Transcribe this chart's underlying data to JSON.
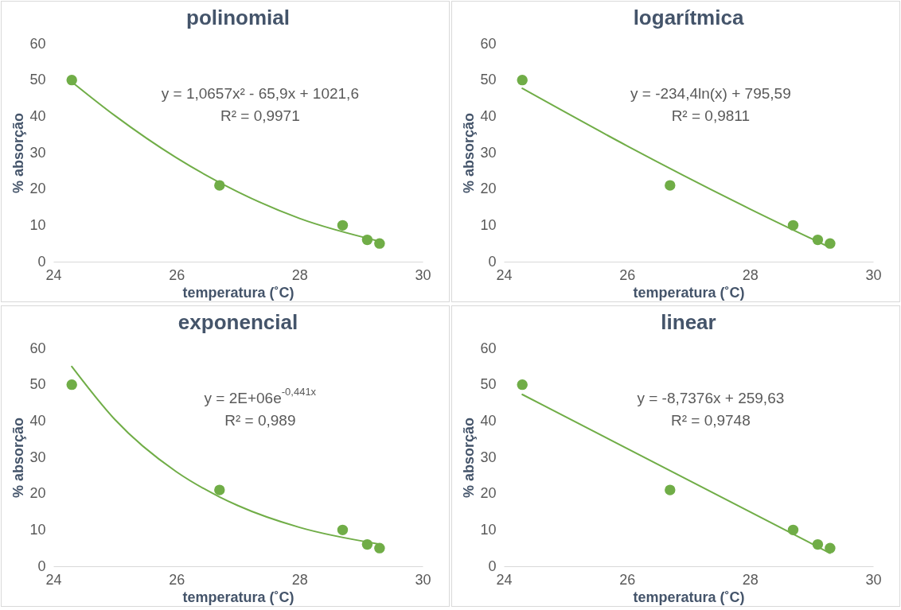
{
  "chart_data": [
    {
      "type": "scatter",
      "title": "polinomial",
      "xlabel": "temperatura (˚C)",
      "ylabel": "% absorção",
      "xlim": [
        24,
        30
      ],
      "xticks": [
        24,
        26,
        28,
        30
      ],
      "ylim": [
        0,
        60
      ],
      "yticks": [
        0,
        10,
        20,
        30,
        40,
        50,
        60
      ],
      "marker": "circle",
      "annotations": [
        "y = 1,0657x² - 65,9x + 1021,6",
        "R² = 0,9971"
      ],
      "series": [
        {
          "type": "scatter",
          "color": "#70ad47",
          "x": [
            24.3,
            26.7,
            28.7,
            29.1,
            29.3
          ],
          "values": [
            50,
            21,
            10,
            6,
            5
          ]
        },
        {
          "type": "line",
          "color": "#70ad47",
          "marker": "none",
          "x": [
            24.3,
            25,
            26,
            27,
            28,
            29.3
          ],
          "values": [
            49.5,
            40.2,
            28.6,
            19.2,
            11.9,
            5.6
          ]
        }
      ]
    },
    {
      "type": "scatter",
      "title": "logarítmica",
      "xlabel": "temperatura (˚C)",
      "ylabel": "% absorção",
      "xlim": [
        24,
        30
      ],
      "xticks": [
        24,
        26,
        28,
        30
      ],
      "ylim": [
        0,
        60
      ],
      "yticks": [
        0,
        10,
        20,
        30,
        40,
        50,
        60
      ],
      "marker": "circle",
      "annotations": [
        "y = -234,4ln(x) + 795,59",
        "R² = 0,9811"
      ],
      "series": [
        {
          "type": "scatter",
          "color": "#70ad47",
          "x": [
            24.3,
            26.7,
            28.7,
            29.1,
            29.3
          ],
          "values": [
            50,
            21,
            10,
            6,
            5
          ]
        },
        {
          "type": "line",
          "color": "#70ad47",
          "marker": "none",
          "x": [
            24.3,
            26,
            28,
            29.3
          ],
          "values": [
            47.7,
            31.9,
            14.5,
            3.9
          ]
        }
      ]
    },
    {
      "type": "scatter",
      "title": "exponencial",
      "xlabel": "temperatura (˚C)",
      "ylabel": "% absorção",
      "xlim": [
        24,
        30
      ],
      "xticks": [
        24,
        26,
        28,
        30
      ],
      "ylim": [
        0,
        60
      ],
      "yticks": [
        0,
        10,
        20,
        30,
        40,
        50,
        60
      ],
      "marker": "circle",
      "annotations": [
        "y = 2E+06e$^{-0,441x}$",
        "R² = 0,989"
      ],
      "series": [
        {
          "type": "scatter",
          "color": "#70ad47",
          "x": [
            24.3,
            26.7,
            28.7,
            29.1,
            29.3
          ],
          "values": [
            50,
            21,
            10,
            6,
            5
          ]
        },
        {
          "type": "line",
          "color": "#70ad47",
          "marker": "none",
          "x": [
            24.3,
            25,
            26,
            26.7,
            27,
            28,
            29.3
          ],
          "values": [
            55,
            40.4,
            26,
            19.1,
            16.7,
            10.7,
            6.1
          ]
        }
      ]
    },
    {
      "type": "scatter",
      "title": "linear",
      "xlabel": "temperatura (˚C)",
      "ylabel": "% absorção",
      "xlim": [
        24,
        30
      ],
      "xticks": [
        24,
        26,
        28,
        30
      ],
      "ylim": [
        0,
        60
      ],
      "yticks": [
        0,
        10,
        20,
        30,
        40,
        50,
        60
      ],
      "marker": "circle",
      "annotations": [
        "y = -8,7376x + 259,63",
        "R² = 0,9748"
      ],
      "series": [
        {
          "type": "scatter",
          "color": "#70ad47",
          "x": [
            24.3,
            26.7,
            28.7,
            29.1,
            29.3
          ],
          "values": [
            50,
            21,
            10,
            6,
            5
          ]
        },
        {
          "type": "line",
          "color": "#70ad47",
          "marker": "none",
          "x": [
            24.3,
            29.3
          ],
          "values": [
            47.3,
            3.6
          ]
        }
      ]
    }
  ]
}
